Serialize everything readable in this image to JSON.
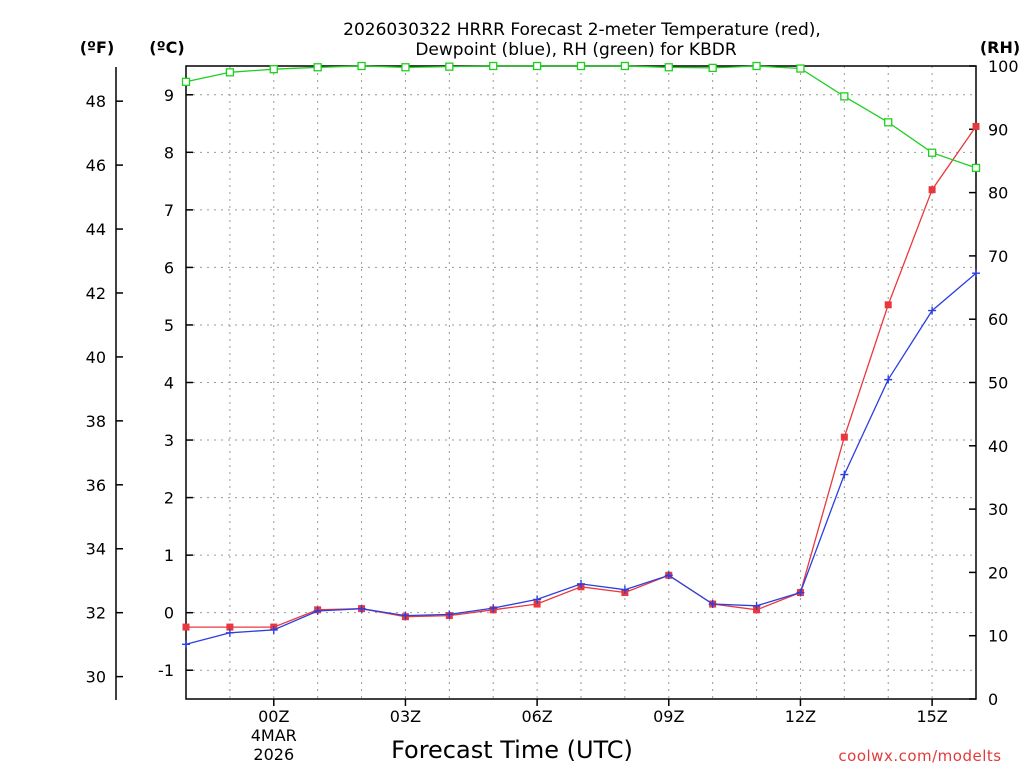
{
  "chart_data": {
    "type": "line",
    "title_line1": "2026030322 HRRR Forecast 2-meter Temperature (red),",
    "title_line2": "Dewpoint (blue), RH (green) for KBDR",
    "xlabel": "Forecast Time (UTC)",
    "credit": "coolwx.com/modelts",
    "units": {
      "fahrenheit": "(ºF)",
      "celsius": "(ºC)",
      "rh": "(RH)"
    },
    "x_hours": [
      -2,
      -1,
      0,
      1,
      2,
      3,
      4,
      5,
      6,
      7,
      8,
      9,
      10,
      11,
      12,
      13,
      14,
      15,
      16
    ],
    "xlim": [
      -2,
      16
    ],
    "x_ticks": [
      {
        "hour": 0,
        "label": "00Z",
        "sub1": "4MAR",
        "sub2": "2026"
      },
      {
        "hour": 3,
        "label": "03Z",
        "sub1": "",
        "sub2": ""
      },
      {
        "hour": 6,
        "label": "06Z",
        "sub1": "",
        "sub2": ""
      },
      {
        "hour": 9,
        "label": "09Z",
        "sub1": "",
        "sub2": ""
      },
      {
        "hour": 12,
        "label": "12Z",
        "sub1": "",
        "sub2": ""
      },
      {
        "hour": 15,
        "label": "15Z",
        "sub1": "",
        "sub2": ""
      }
    ],
    "celsius_axis": {
      "ylim": [
        -1.5,
        9.5
      ],
      "ticks": [
        "-1",
        "0",
        "1",
        "2",
        "3",
        "4",
        "5",
        "6",
        "7",
        "8",
        "9"
      ]
    },
    "fahrenheit_axis": {
      "ylim": [
        29.3,
        49.1
      ],
      "ticks": [
        "30",
        "32",
        "34",
        "36",
        "38",
        "40",
        "42",
        "44",
        "46",
        "48"
      ]
    },
    "rh_axis": {
      "ylim": [
        0,
        100
      ],
      "ticks": [
        "0",
        "10",
        "20",
        "30",
        "40",
        "50",
        "60",
        "70",
        "80",
        "90",
        "100"
      ]
    },
    "series": [
      {
        "name": "Temperature",
        "axis": "celsius",
        "color": "#e8383d",
        "marker": "filled-square",
        "values": [
          -0.25,
          -0.25,
          -0.25,
          0.05,
          0.07,
          -0.07,
          -0.05,
          0.05,
          0.15,
          0.45,
          0.35,
          0.65,
          0.15,
          0.05,
          0.35,
          3.05,
          5.35,
          7.35,
          8.45
        ]
      },
      {
        "name": "Dewpoint",
        "axis": "celsius",
        "color": "#2c3fe0",
        "marker": "plus",
        "values": [
          -0.55,
          -0.35,
          -0.3,
          0.03,
          0.07,
          -0.05,
          -0.03,
          0.08,
          0.23,
          0.5,
          0.4,
          0.65,
          0.15,
          0.12,
          0.35,
          2.4,
          4.05,
          5.25,
          5.9
        ]
      },
      {
        "name": "RH",
        "axis": "rh",
        "color": "#1ed01e",
        "marker": "open-square",
        "values": [
          97.5,
          99,
          99.5,
          99.8,
          100,
          99.8,
          99.9,
          100,
          100,
          100,
          100,
          99.8,
          99.7,
          100,
          99.6,
          95.2,
          91.1,
          86.3,
          83.9
        ]
      }
    ]
  }
}
